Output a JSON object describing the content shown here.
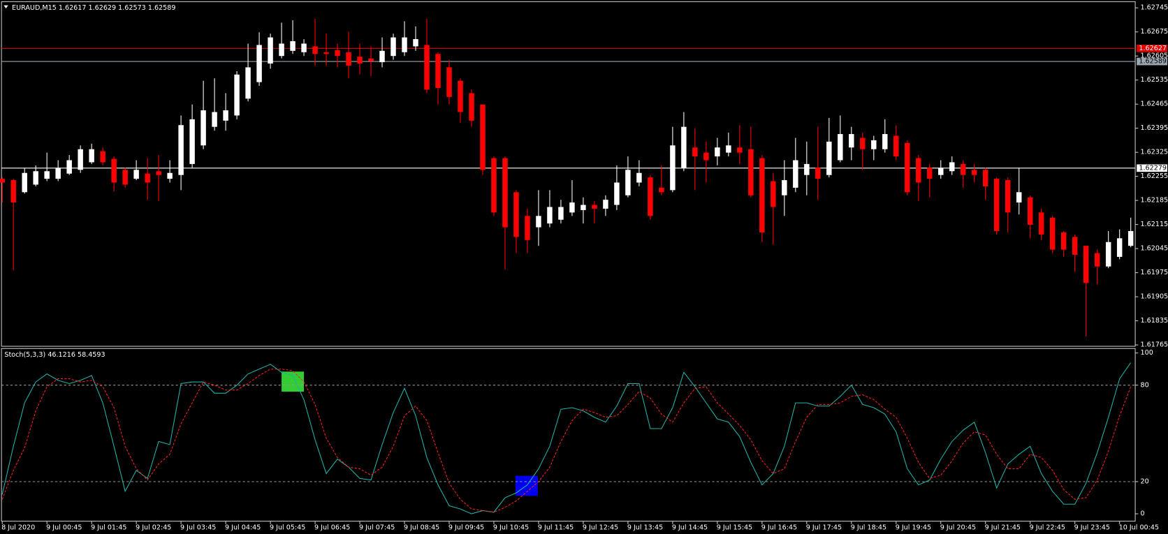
{
  "chart_data": [
    {
      "type": "candlestick",
      "title": "EURAUD,M15",
      "quote": {
        "open": 1.62617,
        "high": 1.62629,
        "low": 1.62573,
        "close": 1.62589
      },
      "up_color": "#ffffff",
      "down_color": "#ff0000",
      "categories": [
        "8 Jul 2020",
        null,
        null,
        null,
        "9 Jul 00:45",
        null,
        null,
        null,
        "9 Jul 01:45",
        null,
        null,
        null,
        "9 Jul 02:45",
        null,
        null,
        null,
        "9 Jul 03:45",
        null,
        null,
        null,
        "9 Jul 04:45",
        null,
        null,
        null,
        "9 Jul 05:45",
        null,
        null,
        null,
        "9 Jul 06:45",
        null,
        null,
        null,
        "9 Jul 07:45",
        null,
        null,
        null,
        "9 Jul 08:45",
        null,
        null,
        null,
        "9 Jul 09:45",
        null,
        null,
        null,
        "9 Jul 10:45",
        null,
        null,
        null,
        "9 Jul 11:45",
        null,
        null,
        null,
        "9 Jul 12:45",
        null,
        null,
        null,
        "9 Jul 13:45",
        null,
        null,
        null,
        "9 Jul 14:45",
        null,
        null,
        null,
        "9 Jul 15:45",
        null,
        null,
        null,
        "9 Jul 16:45",
        null,
        null,
        null,
        "9 Jul 17:45",
        null,
        null,
        null,
        "9 Jul 18:45",
        null,
        null,
        null,
        "9 Jul 19:45",
        null,
        null,
        null,
        "9 Jul 20:45",
        null,
        null,
        null,
        "9 Jul 21:45",
        null,
        null,
        null,
        "9 Jul 22:45",
        null,
        null,
        null,
        "9 Jul 23:45",
        null,
        null,
        null,
        "10 Jul 00:45",
        null
      ],
      "open": [
        1.62248,
        1.62244,
        1.62209,
        1.62231,
        1.62248,
        1.62248,
        1.62263,
        1.62274,
        1.62296,
        1.62328,
        1.62306,
        1.62274,
        1.62248,
        1.62263,
        1.6227,
        1.62248,
        1.62259,
        1.62291,
        1.62345,
        1.62399,
        1.62417,
        1.62432,
        1.62481,
        1.62529,
        1.62583,
        1.62605,
        1.6262,
        1.62616,
        1.62633,
        1.62616,
        1.62622,
        1.62616,
        1.62603,
        1.62598,
        1.62587,
        1.62605,
        1.62616,
        1.62633,
        1.62637,
        1.62611,
        1.62572,
        1.62533,
        1.62497,
        1.62464,
        1.62308,
        1.62308,
        1.62209,
        1.6214,
        1.62107,
        1.62118,
        1.62129,
        1.6215,
        1.62157,
        1.62172,
        1.62161,
        1.62172,
        1.622,
        1.62237,
        1.62252,
        1.62222,
        1.62215,
        1.6228,
        1.62339,
        1.62324,
        1.62313,
        1.62324,
        1.62339,
        1.62334,
        1.62308,
        1.62241,
        1.622,
        1.62222,
        1.62259,
        1.6228,
        1.62259,
        1.62302,
        1.62339,
        1.62367,
        1.62334,
        1.62334,
        1.62373,
        1.62352,
        1.62308,
        1.6228,
        1.62259,
        1.6227,
        1.62291,
        1.62274,
        1.62274,
        1.62248,
        1.62244,
        1.62179,
        1.62194,
        1.6215,
        1.62135,
        1.62092,
        1.62079,
        1.62053,
        1.62032,
        1.61993,
        1.62021,
        1.62053
      ],
      "high": [
        1.62252,
        1.62248,
        1.6228,
        1.62287,
        1.62324,
        1.62302,
        1.62317,
        1.62345,
        1.6235,
        1.62339,
        1.62313,
        1.6228,
        1.62302,
        1.62308,
        1.62317,
        1.62302,
        1.62432,
        1.62464,
        1.62533,
        1.6254,
        1.62497,
        1.62561,
        1.62641,
        1.62674,
        1.6267,
        1.62702,
        1.62709,
        1.62654,
        1.62713,
        1.6267,
        1.62641,
        1.62676,
        1.62641,
        1.62633,
        1.62659,
        1.6267,
        1.62706,
        1.62691,
        1.62713,
        1.62616,
        1.62594,
        1.6254,
        1.62507,
        1.62464,
        1.62313,
        1.62313,
        1.62215,
        1.62161,
        1.62215,
        1.62215,
        1.62187,
        1.62244,
        1.62194,
        1.62183,
        1.622,
        1.62287,
        1.62313,
        1.62302,
        1.62259,
        1.62287,
        1.62399,
        1.62442,
        1.62395,
        1.62356,
        1.62367,
        1.62382,
        1.62404,
        1.62399,
        1.62317,
        1.62265,
        1.62302,
        1.62367,
        1.62356,
        1.62399,
        1.62425,
        1.62432,
        1.62399,
        1.62382,
        1.62373,
        1.62421,
        1.62404,
        1.6236,
        1.62317,
        1.62291,
        1.62302,
        1.62313,
        1.62302,
        1.62291,
        1.6228,
        1.62252,
        1.62252,
        1.6228,
        1.622,
        1.62161,
        1.6214,
        1.62096,
        1.62086,
        1.62053,
        1.62042,
        1.62096,
        1.62101,
        1.62135
      ],
      "low": [
        1.62179,
        1.61982,
        1.62205,
        1.62226,
        1.62241,
        1.62241,
        1.62259,
        1.62265,
        1.62291,
        1.62287,
        1.62211,
        1.62222,
        1.62244,
        1.62187,
        1.62183,
        1.62237,
        1.62215,
        1.6228,
        1.62334,
        1.62388,
        1.62388,
        1.62421,
        1.62473,
        1.62518,
        1.62568,
        1.62598,
        1.62611,
        1.62605,
        1.62577,
        1.62577,
        1.62572,
        1.6254,
        1.62551,
        1.62546,
        1.62572,
        1.62594,
        1.62605,
        1.6262,
        1.62497,
        1.62464,
        1.62464,
        1.6241,
        1.62399,
        1.62259,
        1.6214,
        1.61984,
        1.62032,
        1.62032,
        1.62053,
        1.62107,
        1.62118,
        1.6214,
        1.62118,
        1.62118,
        1.6214,
        1.62157,
        1.62194,
        1.62226,
        1.62129,
        1.622,
        1.62209,
        1.6227,
        1.62215,
        1.62237,
        1.62287,
        1.62313,
        1.62291,
        1.62194,
        1.62064,
        1.62057,
        1.6214,
        1.62209,
        1.622,
        1.62187,
        1.62252,
        1.62296,
        1.62302,
        1.62274,
        1.62302,
        1.62324,
        1.62302,
        1.622,
        1.62183,
        1.62194,
        1.62248,
        1.62259,
        1.62222,
        1.62237,
        1.62187,
        1.62086,
        1.62092,
        1.62144,
        1.62075,
        1.6207,
        1.62032,
        1.62021,
        1.61977,
        1.61789,
        1.61941,
        1.61988,
        1.62014,
        1.62049
      ],
      "close": [
        1.62237,
        1.62179,
        1.62265,
        1.6227,
        1.6227,
        1.6228,
        1.62302,
        1.62334,
        1.62334,
        1.62296,
        1.62237,
        1.62231,
        1.62274,
        1.62237,
        1.62259,
        1.62265,
        1.62404,
        1.62421,
        1.62447,
        1.62442,
        1.62447,
        1.62551,
        1.62572,
        1.62637,
        1.62659,
        1.62641,
        1.62648,
        1.62641,
        1.62611,
        1.62611,
        1.62605,
        1.62577,
        1.62583,
        1.6259,
        1.6262,
        1.62659,
        1.62659,
        1.62654,
        1.62507,
        1.62512,
        1.62486,
        1.62442,
        1.62417,
        1.62274,
        1.6215,
        1.62107,
        1.62079,
        1.6207,
        1.6214,
        1.62166,
        1.62166,
        1.62179,
        1.62172,
        1.62161,
        1.62187,
        1.62237,
        1.62274,
        1.62265,
        1.6214,
        1.62209,
        1.62345,
        1.62399,
        1.62313,
        1.62302,
        1.62339,
        1.62345,
        1.62324,
        1.622,
        1.62092,
        1.62166,
        1.62244,
        1.62302,
        1.62291,
        1.62248,
        1.62356,
        1.62378,
        1.62378,
        1.62334,
        1.6236,
        1.62378,
        1.62313,
        1.62209,
        1.62237,
        1.62248,
        1.6228,
        1.62296,
        1.62259,
        1.62259,
        1.62226,
        1.62096,
        1.6215,
        1.62209,
        1.62114,
        1.62086,
        1.62042,
        1.62042,
        1.62027,
        1.61945,
        1.61993,
        1.62064,
        1.62075,
        1.62096
      ],
      "ylim": [
        1.61761,
        1.62763
      ],
      "yticks": [
        1.62745,
        1.62675,
        1.62605,
        1.62535,
        1.62465,
        1.62395,
        1.62325,
        1.62255,
        1.62185,
        1.62115,
        1.62045,
        1.61975,
        1.61905,
        1.61835,
        1.61765
      ],
      "hlines": [
        {
          "value": 1.62627,
          "color": "#e00000",
          "text_color": "#ffffff"
        },
        {
          "value": 1.62589,
          "color": "#9aa7b0",
          "text_color": "#000000"
        },
        {
          "value": 1.62279,
          "color": "#ffffff",
          "text_color": "#000000"
        }
      ]
    },
    {
      "type": "line",
      "title": "Stoch(5,3,3)",
      "readout": [
        46.1216,
        58.4593
      ],
      "series": [
        {
          "color": "#20b2aa",
          "values": [
            12,
            42,
            69,
            82,
            87,
            83,
            81,
            83,
            86,
            69,
            42,
            14,
            27,
            22,
            45,
            43,
            81,
            82,
            82,
            75,
            75,
            80,
            87,
            90,
            93,
            88,
            86,
            71,
            46,
            25,
            34,
            29,
            22,
            21,
            43,
            63,
            78,
            61,
            35,
            18,
            5,
            3,
            0,
            2,
            1,
            10,
            13,
            18,
            28,
            42,
            65,
            66,
            64,
            60,
            57,
            67,
            81,
            81,
            53,
            53,
            66,
            88,
            79,
            69,
            59,
            57,
            48,
            32,
            18,
            25,
            42,
            69,
            69,
            67,
            67,
            73,
            80,
            68,
            66,
            62,
            51,
            28,
            18,
            21,
            34,
            45,
            52,
            57,
            38,
            16,
            31,
            37,
            42,
            25,
            14,
            6,
            6,
            19,
            38,
            60,
            84,
            94
          ]
        },
        {
          "color": "#ff2020",
          "dashed": true,
          "values": [
            9,
            27,
            41,
            64,
            79,
            84,
            84,
            82,
            83,
            79,
            66,
            42,
            28,
            21,
            31,
            37,
            56,
            69,
            82,
            80,
            77,
            77,
            81,
            86,
            90,
            90,
            89,
            82,
            68,
            47,
            35,
            29,
            28,
            24,
            29,
            42,
            61,
            67,
            58,
            38,
            19,
            9,
            3,
            2,
            1,
            4,
            8,
            14,
            20,
            29,
            45,
            58,
            65,
            63,
            60,
            61,
            68,
            76,
            72,
            62,
            57,
            69,
            78,
            79,
            69,
            62,
            55,
            46,
            33,
            25,
            28,
            45,
            60,
            68,
            68,
            69,
            73,
            74,
            71,
            65,
            60,
            47,
            32,
            22,
            24,
            33,
            44,
            51,
            49,
            37,
            28,
            28,
            37,
            35,
            27,
            15,
            9,
            10,
            21,
            39,
            61,
            79
          ]
        }
      ],
      "ylim": [
        -4.6,
        102.8
      ],
      "yticks": [
        100,
        80,
        20,
        0
      ],
      "levels": [
        80,
        20
      ]
    }
  ]
}
